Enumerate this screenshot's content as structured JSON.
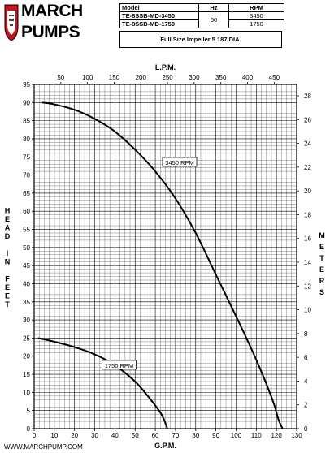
{
  "brand": {
    "line1": "MARCH",
    "line2": "PUMPS"
  },
  "spec_table": {
    "headers": [
      "Model",
      "Hz",
      "RPM"
    ],
    "rows": [
      {
        "model": "TE-8SSB-MD-3450",
        "rpm": "3450"
      },
      {
        "model": "TE-8SSB-MD-1750",
        "rpm": "1750"
      }
    ],
    "hz": "60"
  },
  "impeller_note": "Full Size Impeller 5.187 DIA.",
  "footer_url": "WWW.MARCHPUMP.COM",
  "colors": {
    "line": "#000000",
    "grid": "#000000",
    "brand_red": "#c4161c"
  },
  "chart_data": {
    "type": "line",
    "xlabel": "G.P.M.",
    "x2label": "L.P.M.",
    "ylabel": "HEAD IN FEET",
    "y2label": "METERS",
    "xlim": [
      0,
      130
    ],
    "ylim": [
      0,
      95
    ],
    "x_ticks": [
      0,
      10,
      20,
      30,
      40,
      50,
      60,
      70,
      80,
      90,
      100,
      110,
      120,
      130
    ],
    "y_ticks": [
      0,
      5,
      10,
      15,
      20,
      25,
      30,
      35,
      40,
      45,
      50,
      55,
      60,
      65,
      70,
      75,
      80,
      85,
      90,
      95
    ],
    "x2_ticks": [
      50,
      100,
      150,
      200,
      250,
      300,
      350,
      400,
      450
    ],
    "y2_ticks": [
      0,
      2,
      4,
      6,
      8,
      10,
      12,
      14,
      16,
      18,
      20,
      22,
      24,
      26,
      28
    ],
    "grid": true,
    "series": [
      {
        "name": "3450 RPM",
        "x": [
          4,
          10,
          20,
          30,
          40,
          50,
          60,
          70,
          80,
          90,
          100,
          110,
          118,
          121,
          123
        ],
        "y": [
          90,
          89.5,
          88,
          85.5,
          82,
          77,
          71,
          63.5,
          54,
          42.5,
          31,
          19,
          8,
          2.5,
          0
        ]
      },
      {
        "name": "1750 RPM",
        "x": [
          2,
          10,
          20,
          30,
          40,
          50,
          57,
          63,
          66
        ],
        "y": [
          25,
          24,
          22.5,
          20.5,
          17.5,
          13,
          8.5,
          4,
          0
        ]
      }
    ]
  }
}
